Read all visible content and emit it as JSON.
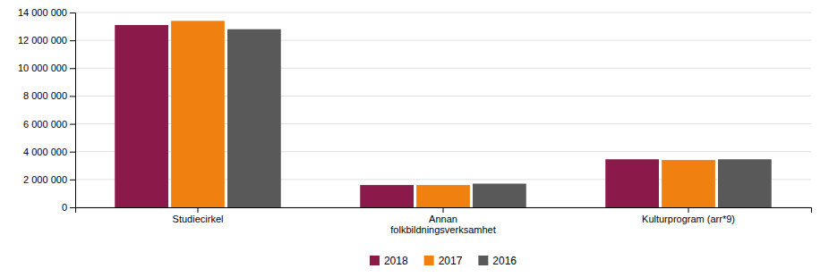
{
  "chart_data": {
    "type": "bar",
    "categories": [
      "Studiecirkel",
      "Annan\nfolkbildningsverksamhet",
      "Kulturprogram (arr*9)"
    ],
    "series": [
      {
        "name": "2018",
        "color": "#8B1A4A",
        "values": [
          13100000,
          1600000,
          3450000
        ]
      },
      {
        "name": "2017",
        "color": "#F08010",
        "values": [
          13400000,
          1600000,
          3400000
        ]
      },
      {
        "name": "2016",
        "color": "#595959",
        "values": [
          12800000,
          1700000,
          3450000
        ]
      }
    ],
    "ylim": [
      0,
      14000000
    ],
    "yticks": [
      0,
      {
        "value": 2000000,
        "label": "2 000 000"
      },
      {
        "value": 4000000,
        "label": "4 000 000"
      },
      {
        "value": 6000000,
        "label": "6 000 000"
      },
      {
        "value": 8000000,
        "label": "8 000 000"
      },
      {
        "value": 10000000,
        "label": "10 000 000"
      },
      {
        "value": 12000000,
        "label": "12 000 000"
      },
      {
        "value": 14000000,
        "label": "14 000 000"
      }
    ],
    "grid": true,
    "legend": "bottom"
  }
}
